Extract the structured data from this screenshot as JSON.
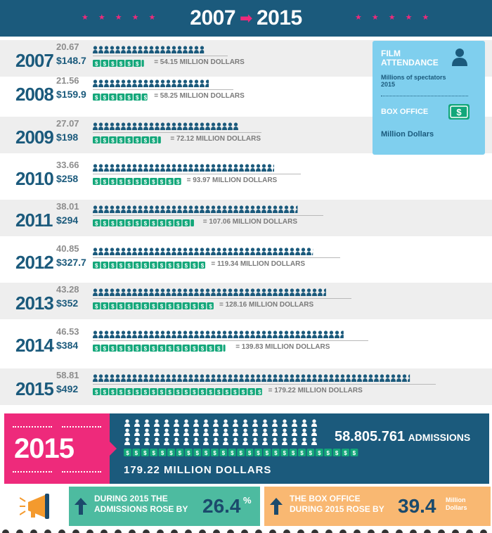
{
  "header": {
    "start_year": "2007",
    "end_year": "2015",
    "arrow": "➡"
  },
  "legend": {
    "attendance_title": "FILM ATTENDANCE",
    "attendance_unit": "Millions of spectators",
    "attendance_year": "2015",
    "box_office_title": "BOX OFFICE",
    "box_office_unit": "Million Dollars",
    "person_icon": "person-icon",
    "money_icon": "dollar-bill-icon"
  },
  "chart_data": {
    "type": "bar",
    "title": "2007 ➡ 2015",
    "categories": [
      "2007",
      "2008",
      "2009",
      "2010",
      "2011",
      "2012",
      "2013",
      "2014",
      "2015"
    ],
    "series": [
      {
        "name": "FILM ATTENDANCE",
        "unit": "Millions of spectators",
        "values": [
          20.67,
          21.56,
          27.07,
          33.66,
          38.01,
          40.85,
          43.28,
          46.53,
          58.81
        ],
        "labels": [
          "20.67",
          "21.56",
          "27.07",
          "33.66",
          "38.01",
          "40.85",
          "43.28",
          "46.53",
          "58.81"
        ]
      },
      {
        "name": "BOX OFFICE",
        "values": [
          148.7,
          159.9,
          198,
          258,
          294,
          327.7,
          352,
          384,
          492
        ],
        "labels": [
          "$148.7",
          "$159.9",
          "$198",
          "$258",
          "$294",
          "$327.7",
          "$352",
          "$384",
          "$492"
        ]
      },
      {
        "name": "MILLION DOLLARS",
        "values": [
          54.15,
          58.25,
          72.12,
          93.97,
          107.06,
          119.34,
          128.16,
          139.83,
          179.22
        ],
        "labels": [
          "= 54.15  MILLION DOLLARS",
          "= 58.25  MILLION DOLLARS",
          "= 72.12  MILLION DOLLARS",
          "= 93.97  MILLION DOLLARS",
          "= 107.06  MILLION DOLLARS",
          "= 119.34  MILLION DOLLARS",
          "= 128.16 MILLION DOLLARS",
          "= 139.83  MILLION DOLLARS",
          "= 179.22  MILLION DOLLARS"
        ]
      }
    ]
  },
  "summary": {
    "year": "2015",
    "admissions_number": "58.805.761",
    "admissions_label": "ADMISSIONS",
    "money_text": "179.22  MILLION  DOLLARS"
  },
  "stats": {
    "admissions_text_1": "DURING 2015 THE",
    "admissions_text_2": "ADMISSIONS ROSE BY",
    "admissions_value": "26.4",
    "admissions_unit": "%",
    "box_office_text_1": "THE BOX OFFICE",
    "box_office_text_2": "DURING 2015 ROSE BY",
    "box_office_value": "39.4",
    "box_office_unit_1": "Million",
    "box_office_unit_2": "Dollars"
  },
  "colors": {
    "navy": "#1b5a7c",
    "pink": "#ee2a7b",
    "green": "#13a77a",
    "light_blue": "#7fcfee",
    "teal_box": "#4dbba0",
    "orange_box": "#f9b872"
  }
}
